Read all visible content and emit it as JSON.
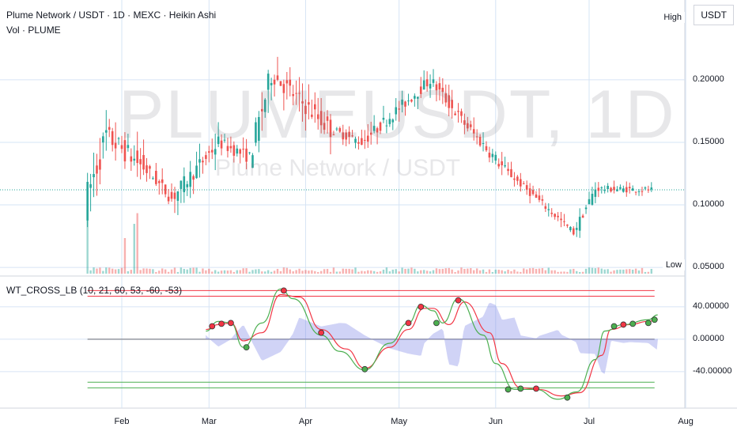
{
  "header": {
    "title": "Plume Network / USDT · 1D · MEXC · Heikin Ashi",
    "volume_label": "Vol · PLUME",
    "indicator_label": "WT_CROSS_LB (10, 21, 60, 53, -60, -53)",
    "currency_button": "USDT",
    "watermark": "PLUMEUSDT, 1D",
    "watermark_sub": "Plume Network / USDT"
  },
  "colors": {
    "up": "#26a69a",
    "down": "#ef5350",
    "grid": "#d6e4f5",
    "wt1": "#4caf50",
    "wt2": "#f23645",
    "hist": "#7b83e8",
    "ob": "#f23645",
    "os": "#4caf50"
  },
  "chart_data": [
    {
      "type": "candlestick",
      "style": "Heikin Ashi",
      "x_range": [
        "Jan 20",
        "Aug 10"
      ],
      "months": [
        "Feb",
        "Mar",
        "Apr",
        "May",
        "Jun",
        "Jul",
        "Aug"
      ],
      "price_ticks": [
        "0.20000",
        "0.15000",
        "0.10000",
        "0.05000"
      ],
      "y_range": [
        0.045,
        0.26
      ],
      "markers": {
        "high": "High",
        "low": "Low"
      },
      "last_price": 0.112,
      "ohlc_segments": [
        {
          "from": "Jan 21",
          "to": "Jan 28",
          "start": 0.1,
          "end": 0.155,
          "spread": 0.05
        },
        {
          "from": "Jan 28",
          "to": "Feb 10",
          "start": 0.155,
          "end": 0.128,
          "spread": 0.035
        },
        {
          "from": "Feb 10",
          "to": "Feb 18",
          "start": 0.128,
          "end": 0.105,
          "spread": 0.02
        },
        {
          "from": "Feb 18",
          "to": "Mar 05",
          "start": 0.105,
          "end": 0.15,
          "spread": 0.025
        },
        {
          "from": "Mar 05",
          "to": "Mar 15",
          "start": 0.15,
          "end": 0.138,
          "spread": 0.02
        },
        {
          "from": "Mar 15",
          "to": "Mar 22",
          "start": 0.138,
          "end": 0.205,
          "spread": 0.04
        },
        {
          "from": "Mar 22",
          "to": "Apr 10",
          "start": 0.205,
          "end": 0.16,
          "spread": 0.03
        },
        {
          "from": "Apr 10",
          "to": "Apr 20",
          "start": 0.16,
          "end": 0.15,
          "spread": 0.015
        },
        {
          "from": "Apr 20",
          "to": "May 12",
          "start": 0.15,
          "end": 0.2,
          "spread": 0.02
        },
        {
          "from": "May 12",
          "to": "May 22",
          "start": 0.2,
          "end": 0.168,
          "spread": 0.02
        },
        {
          "from": "May 22",
          "to": "Jun 05",
          "start": 0.168,
          "end": 0.128,
          "spread": 0.02
        },
        {
          "from": "Jun 05",
          "to": "Jun 27",
          "start": 0.128,
          "end": 0.078,
          "spread": 0.012
        },
        {
          "from": "Jun 27",
          "to": "Jul 04",
          "start": 0.078,
          "end": 0.113,
          "spread": 0.015
        },
        {
          "from": "Jul 04",
          "to": "Jul 22",
          "start": 0.113,
          "end": 0.112,
          "spread": 0.01
        }
      ]
    },
    {
      "type": "bar",
      "name": "Volume",
      "note_peaks": [
        [
          "Jan 21",
          0.9
        ],
        [
          "Feb 02",
          0.5
        ],
        [
          "Feb 05",
          0.7
        ],
        [
          "Feb 06",
          0.85
        ]
      ]
    },
    {
      "type": "line",
      "name": "WT_CROSS_LB",
      "y_ticks": [
        "40.00000",
        "0.00000",
        "-40.00000"
      ],
      "y_range": [
        -85,
        75
      ],
      "levels": [
        60,
        53,
        -60,
        -53
      ],
      "wt1_points": [
        [
          "Feb 28",
          10
        ],
        [
          "Mar 04",
          22
        ],
        [
          "Mar 08",
          20
        ],
        [
          "Mar 12",
          -10
        ],
        [
          "Mar 18",
          20
        ],
        [
          "Mar 24",
          62
        ],
        [
          "Mar 28",
          50
        ],
        [
          "Apr 06",
          5
        ],
        [
          "Apr 12",
          -15
        ],
        [
          "Apr 20",
          -38
        ],
        [
          "Apr 28",
          -5
        ],
        [
          "May 04",
          20
        ],
        [
          "May 08",
          42
        ],
        [
          "May 12",
          35
        ],
        [
          "May 15",
          20
        ],
        [
          "May 20",
          50
        ],
        [
          "May 28",
          5
        ],
        [
          "Jun 01",
          -30
        ],
        [
          "Jun 07",
          -62
        ],
        [
          "Jun 14",
          -62
        ],
        [
          "Jun 21",
          -74
        ],
        [
          "Jun 27",
          -65
        ],
        [
          "Jul 03",
          -25
        ],
        [
          "Jul 06",
          10
        ],
        [
          "Jul 12",
          18
        ],
        [
          "Jul 20",
          24
        ],
        [
          "Jul 23",
          30
        ]
      ],
      "wt2_points": [
        [
          "Feb 28",
          12
        ],
        [
          "Mar 04",
          18
        ],
        [
          "Mar 08",
          20
        ],
        [
          "Mar 12",
          -2
        ],
        [
          "Mar 18",
          8
        ],
        [
          "Mar 24",
          55
        ],
        [
          "Mar 30",
          52
        ],
        [
          "Apr 06",
          12
        ],
        [
          "Apr 14",
          -12
        ],
        [
          "Apr 20",
          -36
        ],
        [
          "Apr 28",
          -10
        ],
        [
          "May 04",
          12
        ],
        [
          "May 09",
          38
        ],
        [
          "May 12",
          38
        ],
        [
          "May 17",
          18
        ],
        [
          "May 22",
          46
        ],
        [
          "May 30",
          8
        ],
        [
          "Jun 03",
          -30
        ],
        [
          "Jun 09",
          -60
        ],
        [
          "Jun 15",
          -62
        ],
        [
          "Jun 22",
          -70
        ],
        [
          "Jun 28",
          -66
        ],
        [
          "Jul 05",
          -20
        ],
        [
          "Jul 08",
          12
        ],
        [
          "Jul 14",
          18
        ],
        [
          "Jul 20",
          22
        ],
        [
          "Jul 23",
          24
        ]
      ],
      "cross_points": [
        [
          "Mar 02",
          16,
          "down"
        ],
        [
          "Mar 05",
          19,
          "down"
        ],
        [
          "Mar 08",
          20,
          "down"
        ],
        [
          "Mar 13",
          -10,
          "up"
        ],
        [
          "Mar 25",
          60,
          "down"
        ],
        [
          "Apr 06",
          8,
          "down"
        ],
        [
          "Apr 20",
          -37,
          "up"
        ],
        [
          "May 04",
          20,
          "down"
        ],
        [
          "May 08",
          40,
          "down"
        ],
        [
          "May 13",
          20,
          "up"
        ],
        [
          "May 20",
          48,
          "down"
        ],
        [
          "Jun 05",
          -62,
          "up"
        ],
        [
          "Jun 09",
          -61,
          "up"
        ],
        [
          "Jun 14",
          -61,
          "down"
        ],
        [
          "Jun 24",
          -72,
          "up"
        ],
        [
          "Jul 09",
          16,
          "up"
        ],
        [
          "Jul 12",
          18,
          "down"
        ],
        [
          "Jul 15",
          19,
          "up"
        ],
        [
          "Jul 20",
          20,
          "up"
        ],
        [
          "Jul 22",
          24,
          "up"
        ]
      ]
    }
  ]
}
